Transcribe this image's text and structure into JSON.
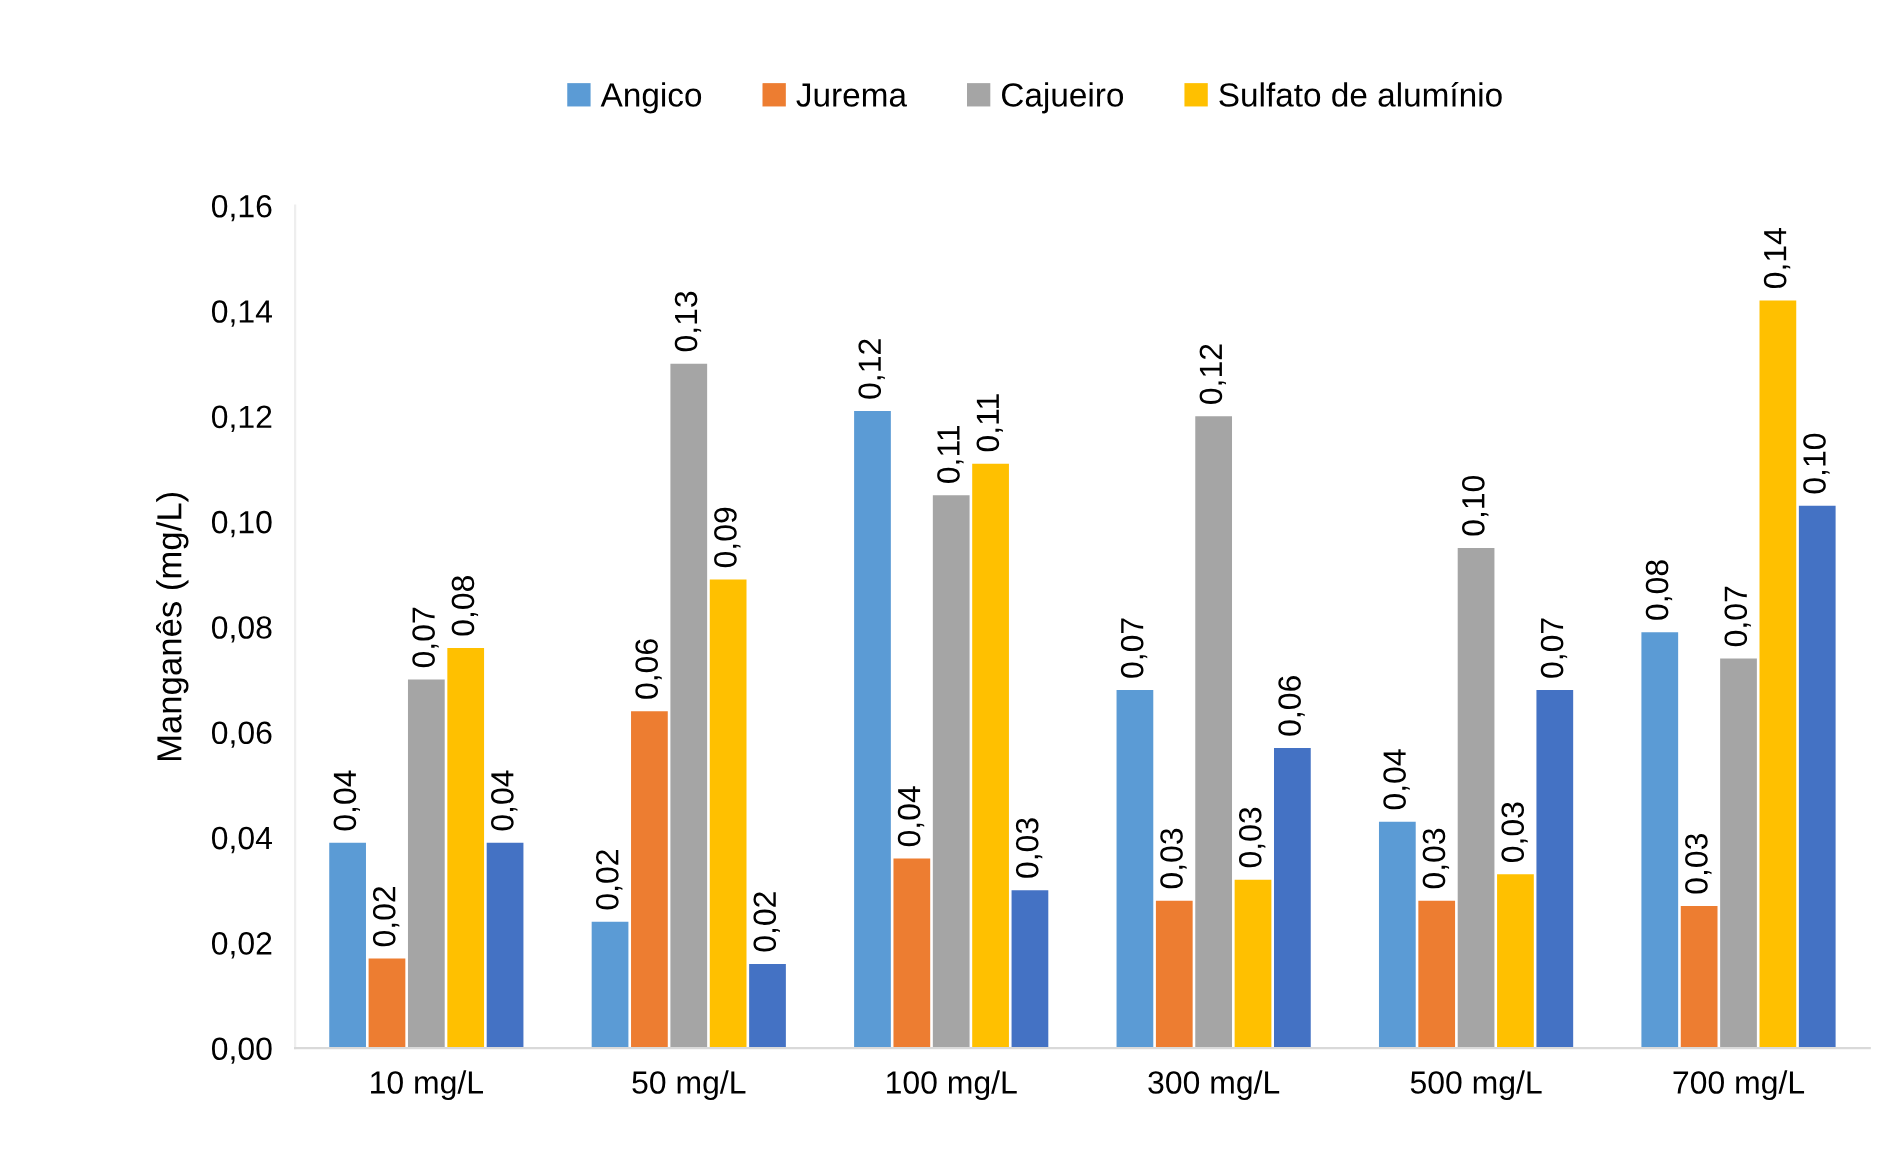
{
  "chart_data": {
    "type": "bar",
    "ylabel": "Manganês (mg/L)",
    "categories": [
      "10 mg/L",
      "50 mg/L",
      "100 mg/L",
      "300 mg/L",
      "500 mg/L",
      "700 mg/L"
    ],
    "series": [
      {
        "name": "Angico",
        "color": "#5b9bd5",
        "values": [
          0.039,
          0.024,
          0.121,
          0.068,
          0.043,
          0.079
        ],
        "value_labels": [
          "0,04",
          "0,02",
          "0,12",
          "0,07",
          "0,04",
          "0,08"
        ]
      },
      {
        "name": "Jurema",
        "color": "#ed7d31",
        "values": [
          0.017,
          0.064,
          0.036,
          0.028,
          0.028,
          0.027
        ],
        "value_labels": [
          "0,02",
          "0,06",
          "0,04",
          "0,03",
          "0,03",
          "0,03"
        ]
      },
      {
        "name": "Cajueiro",
        "color": "#a5a5a5",
        "values": [
          0.07,
          0.13,
          0.105,
          0.12,
          0.095,
          0.074
        ],
        "value_labels": [
          "0,07",
          "0,13",
          "0,11",
          "0,12",
          "0,10",
          "0,07"
        ]
      },
      {
        "name": "Sulfato de alumínio",
        "color": "#ffc000",
        "values": [
          0.076,
          0.089,
          0.111,
          0.032,
          0.033,
          0.142
        ],
        "value_labels": [
          "0,08",
          "0,09",
          "0,11",
          "0,03",
          "0,03",
          "0,14"
        ]
      },
      {
        "color": "#4472c4",
        "values": [
          0.039,
          0.016,
          0.03,
          0.057,
          0.068,
          0.103
        ],
        "value_labels": [
          "0,04",
          "0,02",
          "0,03",
          "0,06",
          "0,07",
          "0,10"
        ]
      }
    ],
    "ylim": [
      0,
      0.16
    ],
    "yticks": [
      {
        "value": 0,
        "label": "0,00"
      },
      {
        "value": 0.02,
        "label": "0,02"
      },
      {
        "value": 0.04,
        "label": "0,04"
      },
      {
        "value": 0.06,
        "label": "0,06"
      },
      {
        "value": 0.08,
        "label": "0,08"
      },
      {
        "value": 0.1,
        "label": "0,10"
      },
      {
        "value": 0.12,
        "label": "0,12"
      },
      {
        "value": 0.14,
        "label": "0,14"
      },
      {
        "value": 0.16,
        "label": "0,16"
      }
    ],
    "grid": false,
    "legend": "top"
  }
}
